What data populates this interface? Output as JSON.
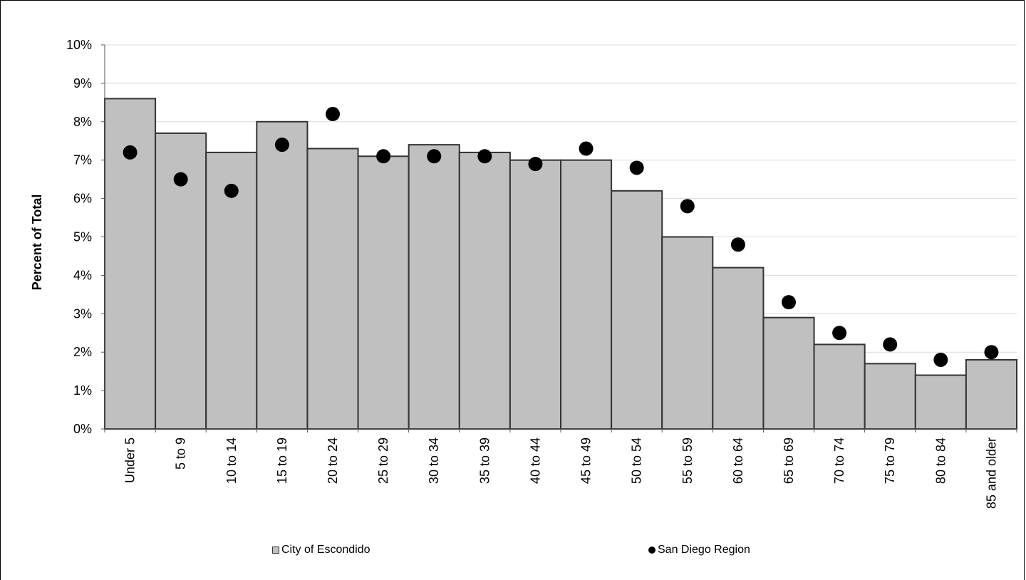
{
  "chart_data": {
    "type": "bar",
    "title": "",
    "xlabel": "",
    "ylabel": "Percent of Total",
    "ylim": [
      0,
      10
    ],
    "yticks": [
      "0%",
      "1%",
      "2%",
      "3%",
      "4%",
      "5%",
      "6%",
      "7%",
      "8%",
      "9%",
      "10%"
    ],
    "grid": true,
    "legend_position": "bottom",
    "categories": [
      "Under 5",
      "5 to 9",
      "10 to 14",
      "15 to 19",
      "20 to 24",
      "25 to 29",
      "30 to 34",
      "35 to 39",
      "40 to 44",
      "45 to 49",
      "50 to 54",
      "55 to 59",
      "60 to 64",
      "65 to 69",
      "70 to 74",
      "75 to 79",
      "80 to 84",
      "85 and older"
    ],
    "series": [
      {
        "name": "City of Escondido",
        "kind": "bar",
        "color": "#c0c0c0",
        "values": [
          8.6,
          7.7,
          7.2,
          8.0,
          7.3,
          7.1,
          7.4,
          7.2,
          7.0,
          7.0,
          6.2,
          5.0,
          4.2,
          2.9,
          2.2,
          1.7,
          1.4,
          1.8
        ]
      },
      {
        "name": "San Diego Region",
        "kind": "marker",
        "color": "#000000",
        "values": [
          7.2,
          6.5,
          6.2,
          7.4,
          8.2,
          7.1,
          7.1,
          7.1,
          6.9,
          7.3,
          6.8,
          5.8,
          4.8,
          3.3,
          2.5,
          2.2,
          1.8,
          2.0
        ]
      }
    ]
  }
}
